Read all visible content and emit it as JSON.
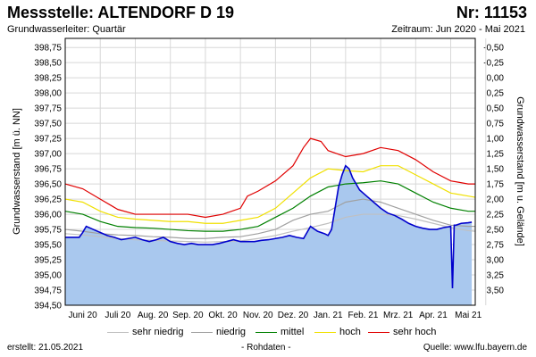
{
  "header": {
    "title": "Messstelle: ALTENDORF D 19",
    "nr": "Nr: 11153",
    "subtitle": "Grundwasserleiter: Quartär",
    "period": "Zeitraum: Jun 2020 - Mai 2021"
  },
  "footer": {
    "created": "erstellt:  21.05.2021",
    "note": "- Rohdaten -",
    "source": "Quelle:  www.lfu.bayern.de"
  },
  "colors": {
    "fill": "#a9c8ee",
    "measured": "#0000cc",
    "sehr_niedrig": "#c0c0c0",
    "niedrig": "#a0a0a0",
    "mittel": "#008000",
    "hoch": "#f0e000",
    "sehr_hoch": "#e00000"
  },
  "chart_data": {
    "type": "line",
    "ylabel_left": "Grundwasserstand [m ü. NN]",
    "ylabel_right": "Grundwasserstand [m u. Gelände]",
    "ylim_left": [
      394.5,
      398.9
    ],
    "ylim_right": [
      3.9,
      -0.5
    ],
    "yticks_left": [
      "394,50",
      "394,75",
      "395,00",
      "395,25",
      "395,50",
      "395,75",
      "396,00",
      "396,25",
      "396,50",
      "396,75",
      "397,00",
      "397,25",
      "397,50",
      "397,75",
      "398,00",
      "398,25",
      "398,50",
      "398,75"
    ],
    "yticks_right": [
      "-0,50",
      "-0,25",
      "0,00",
      "0,25",
      "0,50",
      "0,75",
      "1,00",
      "1,25",
      "1,50",
      "1,75",
      "2,00",
      "2,25",
      "2,50",
      "2,75",
      "3,00",
      "3,25",
      "3,50"
    ],
    "xlim": [
      0,
      11.7
    ],
    "xticks": [
      "Juni 20",
      "Juli 20",
      "Aug. 20",
      "Sep. 20",
      "Okt. 20",
      "Nov. 20",
      "Dez. 20",
      "Jan. 21",
      "Feb. 21",
      "Mrz. 21",
      "Apr. 21",
      "Mai 21"
    ],
    "grid": true,
    "legend": {
      "position": "bottom",
      "entries": [
        "sehr niedrig",
        "niedrig",
        "mittel",
        "hoch",
        "sehr hoch"
      ]
    },
    "series": [
      {
        "name": "sehr hoch",
        "key": "sehr_hoch",
        "x": [
          0,
          0.5,
          1,
          1.5,
          2,
          2.5,
          3,
          3.5,
          4,
          4.5,
          5,
          5.2,
          5.5,
          6,
          6.5,
          6.8,
          7,
          7.3,
          7.5,
          8,
          8.5,
          9,
          9.5,
          10,
          10.5,
          11,
          11.5,
          11.7
        ],
        "y": [
          396.5,
          396.42,
          396.25,
          396.08,
          396.0,
          396.0,
          396.0,
          396.0,
          395.95,
          396.0,
          396.1,
          396.3,
          396.38,
          396.55,
          396.8,
          397.1,
          397.25,
          397.2,
          397.05,
          396.95,
          397.0,
          397.1,
          397.05,
          396.9,
          396.7,
          396.55,
          396.5,
          396.5
        ]
      },
      {
        "name": "hoch",
        "key": "hoch",
        "x": [
          0,
          0.5,
          1,
          1.5,
          2,
          2.5,
          3,
          3.5,
          4,
          4.5,
          5,
          5.5,
          6,
          6.5,
          7,
          7.5,
          8,
          8.5,
          9,
          9.5,
          10,
          10.5,
          11,
          11.5,
          11.7
        ],
        "y": [
          396.25,
          396.2,
          396.05,
          395.95,
          395.92,
          395.9,
          395.88,
          395.88,
          395.85,
          395.85,
          395.9,
          395.95,
          396.1,
          396.35,
          396.6,
          396.75,
          396.72,
          396.7,
          396.8,
          396.8,
          396.65,
          396.5,
          396.35,
          396.3,
          396.28
        ]
      },
      {
        "name": "mittel",
        "key": "mittel",
        "x": [
          0,
          0.5,
          1,
          1.5,
          2,
          2.5,
          3,
          3.5,
          4,
          4.5,
          5,
          5.5,
          6,
          6.5,
          7,
          7.5,
          8,
          8.5,
          9,
          9.5,
          10,
          10.5,
          11,
          11.5,
          11.7
        ],
        "y": [
          396.05,
          396.0,
          395.88,
          395.8,
          395.78,
          395.77,
          395.75,
          395.73,
          395.72,
          395.72,
          395.75,
          395.8,
          395.95,
          396.1,
          396.3,
          396.45,
          396.5,
          396.52,
          396.55,
          396.5,
          396.35,
          396.2,
          396.1,
          396.05,
          396.05
        ]
      },
      {
        "name": "niedrig",
        "key": "niedrig",
        "x": [
          0,
          0.5,
          1,
          1.5,
          2,
          2.5,
          3,
          3.5,
          4,
          4.5,
          5,
          5.5,
          6,
          6.5,
          7,
          7.5,
          8,
          8.5,
          9,
          9.5,
          10,
          10.5,
          11,
          11.5,
          11.7
        ],
        "y": [
          395.75,
          395.72,
          395.68,
          395.66,
          395.65,
          395.63,
          395.62,
          395.6,
          395.6,
          395.62,
          395.63,
          395.68,
          395.75,
          395.9,
          396.0,
          396.05,
          396.2,
          396.25,
          396.2,
          396.1,
          396.0,
          395.9,
          395.82,
          395.8,
          395.8
        ]
      },
      {
        "name": "sehr niedrig",
        "key": "sehr_niedrig",
        "x": [
          0,
          0.5,
          1,
          1.5,
          2,
          2.5,
          3,
          3.5,
          4,
          4.5,
          5,
          5.5,
          6,
          6.5,
          7,
          7.5,
          8,
          8.5,
          9,
          9.5,
          10,
          10.5,
          11,
          11.5,
          11.7
        ],
        "y": [
          395.68,
          395.66,
          395.63,
          395.6,
          395.58,
          395.57,
          395.56,
          395.55,
          395.54,
          395.55,
          395.56,
          395.6,
          395.65,
          395.72,
          395.78,
          395.85,
          395.95,
          396.0,
          396.0,
          395.98,
          395.92,
          395.85,
          395.78,
          395.73,
          395.72
        ]
      },
      {
        "name": "Messwerte",
        "key": "measured",
        "x": [
          0,
          0.4,
          0.5,
          0.6,
          0.8,
          1.0,
          1.2,
          1.4,
          1.6,
          1.8,
          2.0,
          2.2,
          2.4,
          2.6,
          2.8,
          3.0,
          3.2,
          3.4,
          3.6,
          3.8,
          4.0,
          4.2,
          4.4,
          4.6,
          4.8,
          5.0,
          5.2,
          5.4,
          5.6,
          5.8,
          6.0,
          6.2,
          6.4,
          6.6,
          6.8,
          7.0,
          7.2,
          7.4,
          7.5,
          7.6,
          7.7,
          7.8,
          7.9,
          8.0,
          8.1,
          8.2,
          8.4,
          8.6,
          8.8,
          9.0,
          9.2,
          9.4,
          9.6,
          9.8,
          10.0,
          10.2,
          10.4,
          10.6,
          10.8,
          11.0,
          11.05,
          11.1,
          11.15,
          11.3,
          11.5,
          11.6
        ],
        "y": [
          395.62,
          395.62,
          395.7,
          395.8,
          395.75,
          395.7,
          395.65,
          395.62,
          395.58,
          395.6,
          395.62,
          395.58,
          395.55,
          395.58,
          395.62,
          395.55,
          395.52,
          395.5,
          395.52,
          395.5,
          395.5,
          395.5,
          395.52,
          395.55,
          395.58,
          395.55,
          395.55,
          395.55,
          395.57,
          395.58,
          395.6,
          395.62,
          395.65,
          395.62,
          395.6,
          395.8,
          395.72,
          395.68,
          395.65,
          395.75,
          396.1,
          396.45,
          396.65,
          396.8,
          396.75,
          396.6,
          396.4,
          396.3,
          396.2,
          396.1,
          396.02,
          395.98,
          395.92,
          395.85,
          395.8,
          395.77,
          395.75,
          395.75,
          395.78,
          395.8,
          394.78,
          395.82,
          395.82,
          395.85,
          395.86,
          395.87
        ]
      }
    ]
  }
}
